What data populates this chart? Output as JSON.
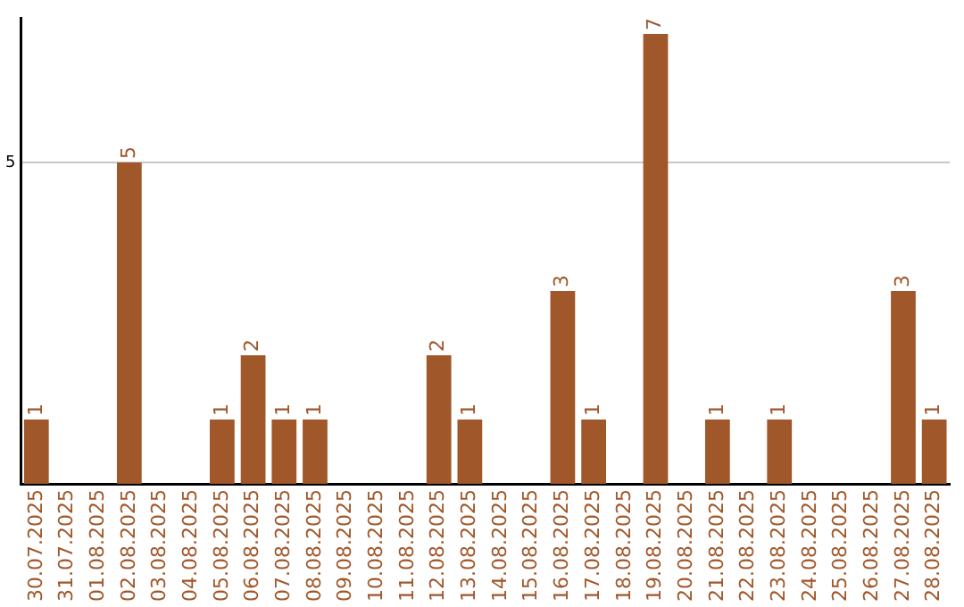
{
  "chart_data": {
    "type": "bar",
    "categories": [
      "30.07.2025",
      "31.07.2025",
      "01.08.2025",
      "02.08.2025",
      "03.08.2025",
      "04.08.2025",
      "05.08.2025",
      "06.08.2025",
      "07.08.2025",
      "08.08.2025",
      "09.08.2025",
      "10.08.2025",
      "11.08.2025",
      "12.08.2025",
      "13.08.2025",
      "14.08.2025",
      "15.08.2025",
      "16.08.2025",
      "17.08.2025",
      "18.08.2025",
      "19.08.2025",
      "20.08.2025",
      "21.08.2025",
      "22.08.2025",
      "23.08.2025",
      "24.08.2025",
      "25.08.2025",
      "26.08.2025",
      "27.08.2025",
      "28.08.2025"
    ],
    "values": [
      1,
      0,
      0,
      5,
      0,
      0,
      1,
      2,
      1,
      1,
      0,
      0,
      0,
      2,
      1,
      0,
      0,
      3,
      1,
      0,
      7,
      0,
      1,
      0,
      1,
      0,
      0,
      0,
      3,
      1
    ],
    "value_labels": [
      "1",
      null,
      null,
      "5",
      null,
      null,
      "1",
      "2",
      "1",
      "1",
      null,
      null,
      null,
      "2",
      "1",
      null,
      null,
      "3",
      "1",
      null,
      "7",
      null,
      "1",
      null,
      "1",
      null,
      null,
      null,
      "3",
      "1"
    ],
    "color": "#a0572a",
    "ylim": [
      0,
      7.25
    ],
    "yticks": [
      5
    ],
    "grid": "y",
    "legend": false
  }
}
